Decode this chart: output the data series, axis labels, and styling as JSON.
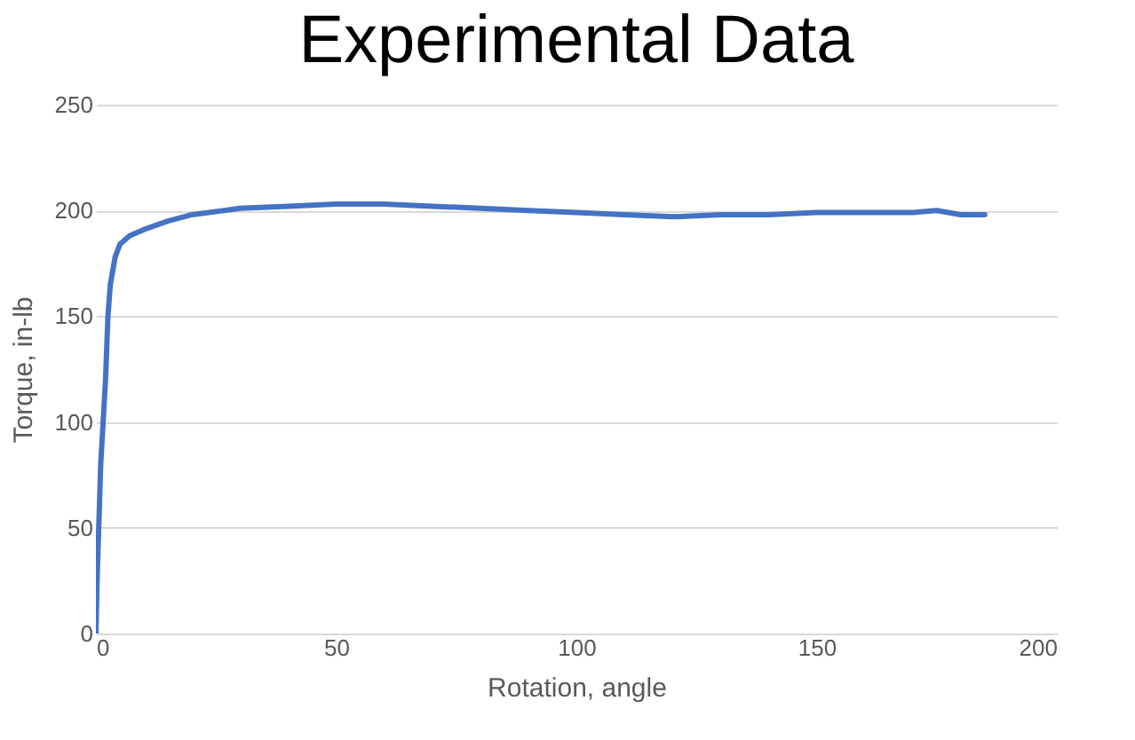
{
  "chart_data": {
    "type": "line",
    "title": "Experimental Data",
    "xlabel": "Rotation,  angle",
    "ylabel": "Torque, in-lb",
    "x": [
      0,
      0.3,
      0.7,
      1,
      1.5,
      2,
      2.5,
      3,
      4,
      5,
      7,
      10,
      15,
      20,
      30,
      40,
      50,
      60,
      70,
      80,
      90,
      100,
      110,
      120,
      130,
      140,
      150,
      160,
      170,
      175,
      180,
      185
    ],
    "series": [
      {
        "color": "#4472c4",
        "values": [
          0,
          30,
          58,
          80,
          100,
          120,
          150,
          165,
          178,
          184,
          188,
          191,
          195,
          198,
          201,
          202,
          203,
          203,
          202,
          201,
          200,
          199,
          198,
          197,
          198,
          198,
          199,
          199,
          199,
          200,
          198,
          198
        ]
      }
    ],
    "xlim": [
      0,
      200
    ],
    "xticks": [
      0,
      50,
      100,
      150,
      200
    ],
    "ylim": [
      0,
      250
    ],
    "yticks": [
      0,
      50,
      100,
      150,
      200,
      250
    ],
    "grid": "y",
    "marker": "none",
    "line_style": "solid"
  }
}
